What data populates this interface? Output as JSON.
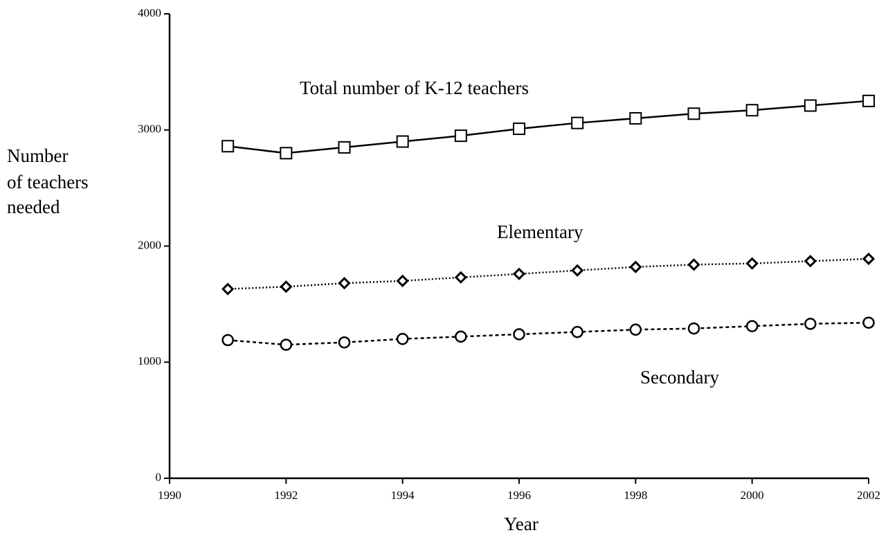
{
  "chart_data": {
    "type": "line",
    "x_label": "Year",
    "y_label": [
      "Number",
      "of teachers",
      "needed"
    ],
    "x": [
      1991,
      1992,
      1993,
      1994,
      1995,
      1996,
      1997,
      1998,
      1999,
      2000,
      2001,
      2002
    ],
    "series": [
      {
        "name": "Total number of K-12 teachers",
        "color": "#000000",
        "marker": "square",
        "line_style": "solid",
        "values": [
          2860,
          2800,
          2850,
          2900,
          2950,
          3010,
          3060,
          3100,
          3140,
          3170,
          3210,
          3250
        ]
      },
      {
        "name": "Elementary",
        "color": "#000000",
        "marker": "diamond",
        "line_style": "dotted",
        "values": [
          1630,
          1650,
          1680,
          1700,
          1730,
          1760,
          1790,
          1820,
          1840,
          1850,
          1870,
          1890
        ]
      },
      {
        "name": "Secondary",
        "color": "#000000",
        "marker": "circle",
        "line_style": "dashed",
        "values": [
          1190,
          1150,
          1170,
          1200,
          1220,
          1240,
          1260,
          1280,
          1290,
          1310,
          1330,
          1340
        ]
      }
    ],
    "xlim": [
      1990,
      2002
    ],
    "xticks": [
      1990,
      1992,
      1994,
      1996,
      1998,
      2000,
      2002
    ],
    "ylim": [
      0,
      4000
    ],
    "yticks": [
      0,
      1000,
      2000,
      3000,
      4000
    ],
    "grid": false
  }
}
